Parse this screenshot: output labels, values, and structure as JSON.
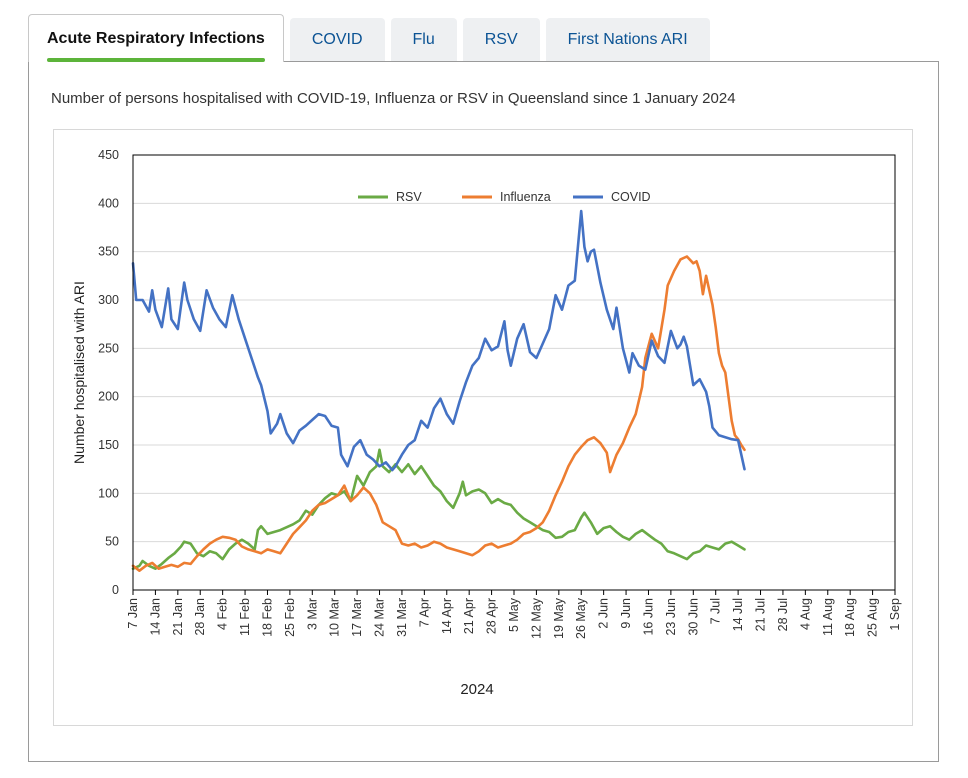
{
  "tabs": [
    {
      "label": "Acute Respiratory Infections",
      "active": true
    },
    {
      "label": "COVID",
      "active": false
    },
    {
      "label": "Flu",
      "active": false
    },
    {
      "label": "RSV",
      "active": false
    },
    {
      "label": "First Nations ARI",
      "active": false
    }
  ],
  "caption": "Number of persons hospitalised with COVID-19, Influenza or RSV in Queensland since 1 January 2024",
  "chart_data": {
    "type": "line",
    "ylabel": "Number hospitalised with ARI",
    "xlabel": "2024",
    "ylim": [
      0,
      450
    ],
    "yticks": [
      0,
      50,
      100,
      150,
      200,
      250,
      300,
      350,
      400,
      450
    ],
    "xlim": [
      "2024-01-07",
      "2024-09-01"
    ],
    "xticks": [
      "7 Jan",
      "14 Jan",
      "21 Jan",
      "28 Jan",
      "4 Feb",
      "11 Feb",
      "18 Feb",
      "25 Feb",
      "3 Mar",
      "10 Mar",
      "17 Mar",
      "24 Mar",
      "31 Mar",
      "7 Apr",
      "14 Apr",
      "21 Apr",
      "28 Apr",
      "5 May",
      "12 May",
      "19 May",
      "26 May",
      "2 Jun",
      "9 Jun",
      "16 Jun",
      "23 Jun",
      "30 Jun",
      "7 Jul",
      "14 Jul",
      "21 Jul",
      "28 Jul",
      "4 Aug",
      "11 Aug",
      "18 Aug",
      "25 Aug",
      "1 Sep"
    ],
    "grid": true,
    "legend_position": "top",
    "series": [
      {
        "name": "RSV",
        "color": "#6aaa45",
        "values": [
          [
            0,
            22
          ],
          [
            2,
            25
          ],
          [
            3,
            30
          ],
          [
            5,
            25
          ],
          [
            7,
            22
          ],
          [
            9,
            27
          ],
          [
            11,
            33
          ],
          [
            13,
            38
          ],
          [
            15,
            45
          ],
          [
            16,
            50
          ],
          [
            18,
            48
          ],
          [
            20,
            38
          ],
          [
            22,
            35
          ],
          [
            24,
            40
          ],
          [
            26,
            38
          ],
          [
            28,
            32
          ],
          [
            30,
            42
          ],
          [
            32,
            48
          ],
          [
            34,
            52
          ],
          [
            36,
            48
          ],
          [
            38,
            42
          ],
          [
            39,
            62
          ],
          [
            40,
            66
          ],
          [
            42,
            58
          ],
          [
            44,
            60
          ],
          [
            46,
            62
          ],
          [
            48,
            65
          ],
          [
            50,
            68
          ],
          [
            52,
            72
          ],
          [
            54,
            82
          ],
          [
            56,
            78
          ],
          [
            58,
            88
          ],
          [
            60,
            95
          ],
          [
            62,
            100
          ],
          [
            64,
            98
          ],
          [
            66,
            102
          ],
          [
            68,
            92
          ],
          [
            70,
            118
          ],
          [
            72,
            108
          ],
          [
            74,
            122
          ],
          [
            76,
            128
          ],
          [
            77,
            145
          ],
          [
            78,
            128
          ],
          [
            80,
            122
          ],
          [
            82,
            130
          ],
          [
            84,
            122
          ],
          [
            86,
            130
          ],
          [
            88,
            120
          ],
          [
            90,
            128
          ],
          [
            92,
            118
          ],
          [
            94,
            108
          ],
          [
            96,
            102
          ],
          [
            98,
            92
          ],
          [
            100,
            85
          ],
          [
            102,
            100
          ],
          [
            103,
            112
          ],
          [
            104,
            98
          ],
          [
            106,
            102
          ],
          [
            108,
            104
          ],
          [
            110,
            100
          ],
          [
            112,
            90
          ],
          [
            114,
            94
          ],
          [
            116,
            90
          ],
          [
            118,
            88
          ],
          [
            120,
            80
          ],
          [
            122,
            74
          ],
          [
            124,
            70
          ],
          [
            126,
            66
          ],
          [
            128,
            62
          ],
          [
            130,
            60
          ],
          [
            132,
            54
          ],
          [
            134,
            55
          ],
          [
            136,
            60
          ],
          [
            138,
            62
          ],
          [
            140,
            75
          ],
          [
            141,
            80
          ],
          [
            143,
            70
          ],
          [
            145,
            58
          ],
          [
            147,
            64
          ],
          [
            149,
            66
          ],
          [
            151,
            60
          ],
          [
            153,
            55
          ],
          [
            155,
            52
          ],
          [
            157,
            58
          ],
          [
            159,
            62
          ],
          [
            161,
            57
          ],
          [
            163,
            52
          ],
          [
            165,
            48
          ],
          [
            167,
            40
          ],
          [
            169,
            38
          ],
          [
            171,
            35
          ],
          [
            173,
            32
          ],
          [
            175,
            38
          ],
          [
            177,
            40
          ],
          [
            179,
            46
          ],
          [
            181,
            44
          ],
          [
            183,
            42
          ],
          [
            185,
            48
          ],
          [
            187,
            50
          ],
          [
            189,
            46
          ],
          [
            191,
            42
          ]
        ]
      },
      {
        "name": "Influenza",
        "color": "#ed7d31",
        "values": [
          [
            0,
            25
          ],
          [
            2,
            20
          ],
          [
            4,
            25
          ],
          [
            6,
            28
          ],
          [
            8,
            22
          ],
          [
            10,
            24
          ],
          [
            12,
            26
          ],
          [
            14,
            24
          ],
          [
            16,
            28
          ],
          [
            18,
            27
          ],
          [
            20,
            35
          ],
          [
            22,
            42
          ],
          [
            24,
            48
          ],
          [
            26,
            52
          ],
          [
            28,
            55
          ],
          [
            30,
            54
          ],
          [
            32,
            52
          ],
          [
            34,
            45
          ],
          [
            36,
            42
          ],
          [
            38,
            40
          ],
          [
            40,
            38
          ],
          [
            42,
            42
          ],
          [
            44,
            40
          ],
          [
            46,
            38
          ],
          [
            48,
            48
          ],
          [
            50,
            58
          ],
          [
            52,
            65
          ],
          [
            54,
            72
          ],
          [
            56,
            82
          ],
          [
            58,
            88
          ],
          [
            60,
            90
          ],
          [
            62,
            94
          ],
          [
            64,
            98
          ],
          [
            66,
            108
          ],
          [
            68,
            92
          ],
          [
            70,
            98
          ],
          [
            72,
            106
          ],
          [
            74,
            100
          ],
          [
            76,
            88
          ],
          [
            78,
            70
          ],
          [
            80,
            66
          ],
          [
            82,
            62
          ],
          [
            84,
            48
          ],
          [
            86,
            46
          ],
          [
            88,
            48
          ],
          [
            90,
            44
          ],
          [
            92,
            46
          ],
          [
            94,
            50
          ],
          [
            96,
            48
          ],
          [
            98,
            44
          ],
          [
            100,
            42
          ],
          [
            102,
            40
          ],
          [
            104,
            38
          ],
          [
            106,
            36
          ],
          [
            108,
            40
          ],
          [
            110,
            46
          ],
          [
            112,
            48
          ],
          [
            114,
            44
          ],
          [
            116,
            46
          ],
          [
            118,
            48
          ],
          [
            120,
            52
          ],
          [
            122,
            58
          ],
          [
            124,
            60
          ],
          [
            126,
            64
          ],
          [
            128,
            70
          ],
          [
            130,
            82
          ],
          [
            132,
            98
          ],
          [
            134,
            112
          ],
          [
            136,
            128
          ],
          [
            138,
            140
          ],
          [
            140,
            148
          ],
          [
            142,
            155
          ],
          [
            144,
            158
          ],
          [
            146,
            152
          ],
          [
            148,
            142
          ],
          [
            149,
            122
          ],
          [
            151,
            140
          ],
          [
            153,
            152
          ],
          [
            155,
            168
          ],
          [
            157,
            182
          ],
          [
            159,
            210
          ],
          [
            160,
            240
          ],
          [
            162,
            265
          ],
          [
            164,
            250
          ],
          [
            165,
            270
          ],
          [
            166,
            290
          ],
          [
            167,
            315
          ],
          [
            169,
            330
          ],
          [
            171,
            342
          ],
          [
            173,
            345
          ],
          [
            175,
            338
          ],
          [
            176,
            340
          ],
          [
            177,
            330
          ],
          [
            178,
            306
          ],
          [
            179,
            325
          ],
          [
            180,
            310
          ],
          [
            181,
            295
          ],
          [
            182,
            272
          ],
          [
            183,
            245
          ],
          [
            184,
            232
          ],
          [
            185,
            225
          ],
          [
            186,
            200
          ],
          [
            187,
            175
          ],
          [
            188,
            160
          ],
          [
            189,
            156
          ],
          [
            190,
            150
          ],
          [
            191,
            145
          ]
        ]
      },
      {
        "name": "COVID",
        "color": "#4472c4",
        "values": [
          [
            0,
            338
          ],
          [
            1,
            300
          ],
          [
            3,
            300
          ],
          [
            5,
            288
          ],
          [
            6,
            310
          ],
          [
            7,
            290
          ],
          [
            9,
            272
          ],
          [
            11,
            312
          ],
          [
            12,
            280
          ],
          [
            14,
            270
          ],
          [
            16,
            318
          ],
          [
            17,
            300
          ],
          [
            19,
            280
          ],
          [
            21,
            268
          ],
          [
            23,
            310
          ],
          [
            25,
            292
          ],
          [
            27,
            280
          ],
          [
            29,
            272
          ],
          [
            31,
            305
          ],
          [
            33,
            280
          ],
          [
            35,
            260
          ],
          [
            37,
            240
          ],
          [
            39,
            220
          ],
          [
            40,
            212
          ],
          [
            42,
            185
          ],
          [
            43,
            162
          ],
          [
            45,
            172
          ],
          [
            46,
            182
          ],
          [
            48,
            162
          ],
          [
            50,
            152
          ],
          [
            52,
            165
          ],
          [
            54,
            170
          ],
          [
            56,
            176
          ],
          [
            58,
            182
          ],
          [
            60,
            180
          ],
          [
            62,
            170
          ],
          [
            64,
            168
          ],
          [
            65,
            140
          ],
          [
            67,
            128
          ],
          [
            69,
            148
          ],
          [
            71,
            155
          ],
          [
            73,
            140
          ],
          [
            75,
            135
          ],
          [
            77,
            128
          ],
          [
            79,
            132
          ],
          [
            81,
            124
          ],
          [
            82,
            128
          ],
          [
            84,
            140
          ],
          [
            86,
            150
          ],
          [
            88,
            155
          ],
          [
            90,
            175
          ],
          [
            92,
            168
          ],
          [
            94,
            188
          ],
          [
            96,
            198
          ],
          [
            98,
            182
          ],
          [
            100,
            172
          ],
          [
            102,
            195
          ],
          [
            104,
            215
          ],
          [
            106,
            232
          ],
          [
            108,
            240
          ],
          [
            110,
            260
          ],
          [
            112,
            248
          ],
          [
            114,
            252
          ],
          [
            116,
            278
          ],
          [
            117,
            248
          ],
          [
            118,
            232
          ],
          [
            120,
            260
          ],
          [
            122,
            275
          ],
          [
            124,
            246
          ],
          [
            126,
            240
          ],
          [
            128,
            255
          ],
          [
            130,
            270
          ],
          [
            132,
            305
          ],
          [
            134,
            290
          ],
          [
            136,
            315
          ],
          [
            138,
            320
          ],
          [
            140,
            392
          ],
          [
            141,
            355
          ],
          [
            142,
            340
          ],
          [
            143,
            350
          ],
          [
            144,
            352
          ],
          [
            146,
            318
          ],
          [
            148,
            290
          ],
          [
            150,
            270
          ],
          [
            151,
            292
          ],
          [
            153,
            250
          ],
          [
            155,
            225
          ],
          [
            156,
            245
          ],
          [
            158,
            232
          ],
          [
            160,
            228
          ],
          [
            162,
            258
          ],
          [
            164,
            242
          ],
          [
            166,
            235
          ],
          [
            168,
            268
          ],
          [
            170,
            250
          ],
          [
            171,
            254
          ],
          [
            172,
            262
          ],
          [
            173,
            252
          ],
          [
            175,
            212
          ],
          [
            177,
            218
          ],
          [
            179,
            205
          ],
          [
            180,
            190
          ],
          [
            181,
            168
          ],
          [
            183,
            160
          ],
          [
            185,
            158
          ],
          [
            187,
            156
          ],
          [
            189,
            155
          ],
          [
            190,
            140
          ],
          [
            191,
            125
          ]
        ]
      }
    ]
  }
}
